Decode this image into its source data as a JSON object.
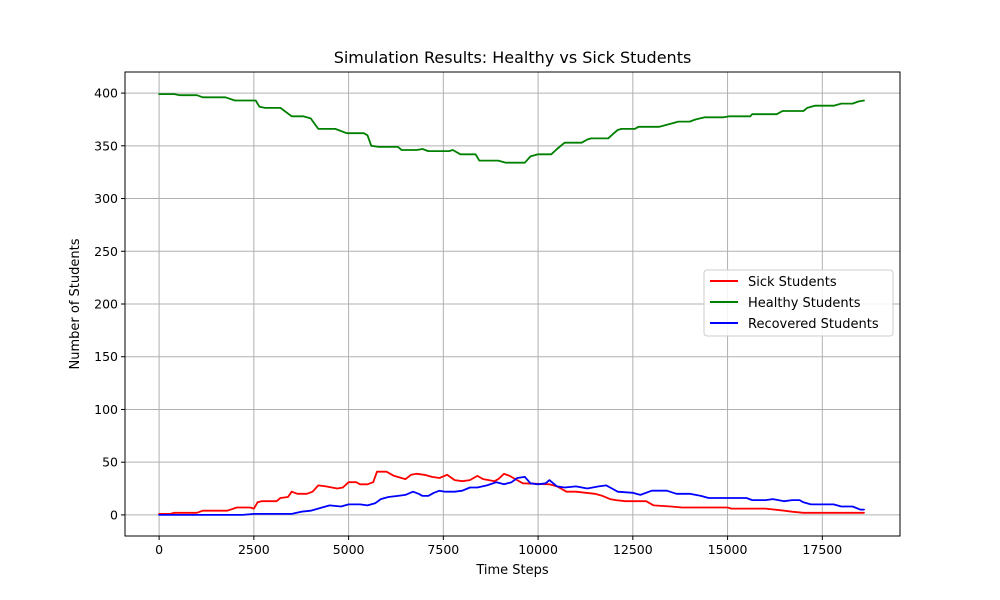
{
  "chart_data": {
    "type": "line",
    "title": "Simulation Results: Healthy vs Sick Students",
    "xlabel": "Time Steps",
    "ylabel": "Number of Students",
    "xlim": [
      -900,
      19550
    ],
    "ylim": [
      -20,
      420
    ],
    "x_ticks": [
      "0",
      "2500",
      "5000",
      "7500",
      "10000",
      "12500",
      "15000",
      "17500"
    ],
    "y_ticks": [
      "0",
      "50",
      "100",
      "150",
      "200",
      "250",
      "300",
      "350",
      "400"
    ],
    "grid": true,
    "legend_position": "center-right",
    "series": [
      {
        "name": "Sick Students",
        "color": "#ff0000",
        "points": [
          [
            0,
            1
          ],
          [
            300,
            1
          ],
          [
            400,
            2
          ],
          [
            1000,
            2
          ],
          [
            1150,
            4
          ],
          [
            1800,
            4
          ],
          [
            2050,
            7
          ],
          [
            2400,
            7
          ],
          [
            2500,
            6
          ],
          [
            2600,
            12
          ],
          [
            2700,
            13
          ],
          [
            3100,
            13
          ],
          [
            3200,
            16
          ],
          [
            3400,
            17
          ],
          [
            3500,
            22
          ],
          [
            3650,
            20
          ],
          [
            3900,
            20
          ],
          [
            4050,
            22
          ],
          [
            4200,
            28
          ],
          [
            4400,
            27
          ],
          [
            4700,
            25
          ],
          [
            4850,
            26
          ],
          [
            5000,
            31
          ],
          [
            5200,
            31
          ],
          [
            5300,
            29
          ],
          [
            5500,
            29
          ],
          [
            5650,
            31
          ],
          [
            5750,
            41
          ],
          [
            6000,
            41
          ],
          [
            6200,
            37
          ],
          [
            6500,
            34
          ],
          [
            6650,
            38
          ],
          [
            6800,
            39
          ],
          [
            7000,
            38
          ],
          [
            7200,
            36
          ],
          [
            7400,
            35
          ],
          [
            7600,
            38
          ],
          [
            7800,
            33
          ],
          [
            8000,
            32
          ],
          [
            8200,
            33
          ],
          [
            8400,
            37
          ],
          [
            8550,
            34
          ],
          [
            8700,
            33
          ],
          [
            8850,
            32
          ],
          [
            8950,
            34
          ],
          [
            9100,
            39
          ],
          [
            9250,
            37
          ],
          [
            9400,
            34
          ],
          [
            9600,
            30
          ],
          [
            10300,
            29
          ],
          [
            10500,
            27
          ],
          [
            10750,
            22
          ],
          [
            11000,
            22
          ],
          [
            11500,
            20
          ],
          [
            11700,
            18
          ],
          [
            11900,
            15
          ],
          [
            12050,
            14
          ],
          [
            12300,
            13
          ],
          [
            12850,
            13
          ],
          [
            13050,
            9
          ],
          [
            13500,
            8
          ],
          [
            13800,
            7
          ],
          [
            15000,
            7
          ],
          [
            15100,
            6
          ],
          [
            16000,
            6
          ],
          [
            16500,
            4
          ],
          [
            16700,
            3
          ],
          [
            17000,
            2
          ],
          [
            18600,
            2
          ]
        ]
      },
      {
        "name": "Healthy Students",
        "color": "#008000",
        "points": [
          [
            0,
            399
          ],
          [
            400,
            399
          ],
          [
            550,
            398
          ],
          [
            1000,
            398
          ],
          [
            1150,
            396
          ],
          [
            1750,
            396
          ],
          [
            2000,
            393
          ],
          [
            2550,
            393
          ],
          [
            2650,
            387
          ],
          [
            2800,
            386
          ],
          [
            3200,
            386
          ],
          [
            3350,
            382
          ],
          [
            3500,
            378
          ],
          [
            3800,
            378
          ],
          [
            4000,
            376
          ],
          [
            4200,
            366
          ],
          [
            4650,
            366
          ],
          [
            4950,
            362
          ],
          [
            5400,
            362
          ],
          [
            5500,
            360
          ],
          [
            5600,
            350
          ],
          [
            5800,
            349
          ],
          [
            6300,
            349
          ],
          [
            6400,
            346
          ],
          [
            6800,
            346
          ],
          [
            6950,
            347
          ],
          [
            7100,
            345
          ],
          [
            7650,
            345
          ],
          [
            7750,
            346
          ],
          [
            7950,
            342
          ],
          [
            8350,
            342
          ],
          [
            8450,
            336
          ],
          [
            8950,
            336
          ],
          [
            9150,
            334
          ],
          [
            9350,
            334
          ],
          [
            9650,
            334
          ],
          [
            9800,
            340
          ],
          [
            10000,
            342
          ],
          [
            10350,
            342
          ],
          [
            10500,
            347
          ],
          [
            10700,
            353
          ],
          [
            11150,
            353
          ],
          [
            11300,
            356
          ],
          [
            11400,
            357
          ],
          [
            11850,
            357
          ],
          [
            12000,
            362
          ],
          [
            12100,
            365
          ],
          [
            12200,
            366
          ],
          [
            12550,
            366
          ],
          [
            12650,
            368
          ],
          [
            13200,
            368
          ],
          [
            13500,
            371
          ],
          [
            13700,
            373
          ],
          [
            14000,
            373
          ],
          [
            14150,
            375
          ],
          [
            14400,
            377
          ],
          [
            14900,
            377
          ],
          [
            15050,
            378
          ],
          [
            15600,
            378
          ],
          [
            15650,
            380
          ],
          [
            16300,
            380
          ],
          [
            16450,
            383
          ],
          [
            16700,
            383
          ],
          [
            17000,
            383
          ],
          [
            17100,
            386
          ],
          [
            17300,
            388
          ],
          [
            17800,
            388
          ],
          [
            18000,
            390
          ],
          [
            18300,
            390
          ],
          [
            18450,
            392
          ],
          [
            18600,
            393
          ]
        ]
      },
      {
        "name": "Recovered Students",
        "color": "#0000ff",
        "points": [
          [
            0,
            0
          ],
          [
            2200,
            0
          ],
          [
            2500,
            1
          ],
          [
            3500,
            1
          ],
          [
            3750,
            3
          ],
          [
            4000,
            4
          ],
          [
            4300,
            7
          ],
          [
            4500,
            9
          ],
          [
            4800,
            8
          ],
          [
            5000,
            10
          ],
          [
            5300,
            10
          ],
          [
            5500,
            9
          ],
          [
            5700,
            11
          ],
          [
            5850,
            15
          ],
          [
            6050,
            17
          ],
          [
            6300,
            18
          ],
          [
            6500,
            19
          ],
          [
            6700,
            22
          ],
          [
            6850,
            20
          ],
          [
            6950,
            18
          ],
          [
            7100,
            18
          ],
          [
            7250,
            21
          ],
          [
            7400,
            23
          ],
          [
            7550,
            22
          ],
          [
            7800,
            22
          ],
          [
            8000,
            23
          ],
          [
            8200,
            26
          ],
          [
            8400,
            26
          ],
          [
            8650,
            28
          ],
          [
            8900,
            31
          ],
          [
            9100,
            29
          ],
          [
            9300,
            31
          ],
          [
            9450,
            35
          ],
          [
            9650,
            36
          ],
          [
            9800,
            30
          ],
          [
            10000,
            29
          ],
          [
            10200,
            30
          ],
          [
            10300,
            33
          ],
          [
            10500,
            27
          ],
          [
            10700,
            26
          ],
          [
            11000,
            27
          ],
          [
            11300,
            25
          ],
          [
            11600,
            27
          ],
          [
            11800,
            28
          ],
          [
            11950,
            25
          ],
          [
            12100,
            22
          ],
          [
            12500,
            21
          ],
          [
            12700,
            19
          ],
          [
            13000,
            23
          ],
          [
            13400,
            23
          ],
          [
            13650,
            20
          ],
          [
            14000,
            20
          ],
          [
            14300,
            18
          ],
          [
            14500,
            16
          ],
          [
            15200,
            16
          ],
          [
            15500,
            16
          ],
          [
            15650,
            14
          ],
          [
            16000,
            14
          ],
          [
            16200,
            15
          ],
          [
            16500,
            13
          ],
          [
            16700,
            14
          ],
          [
            16900,
            14
          ],
          [
            17000,
            12
          ],
          [
            17200,
            10
          ],
          [
            17800,
            10
          ],
          [
            18000,
            8
          ],
          [
            18300,
            8
          ],
          [
            18500,
            5
          ],
          [
            18600,
            5
          ]
        ]
      }
    ]
  }
}
